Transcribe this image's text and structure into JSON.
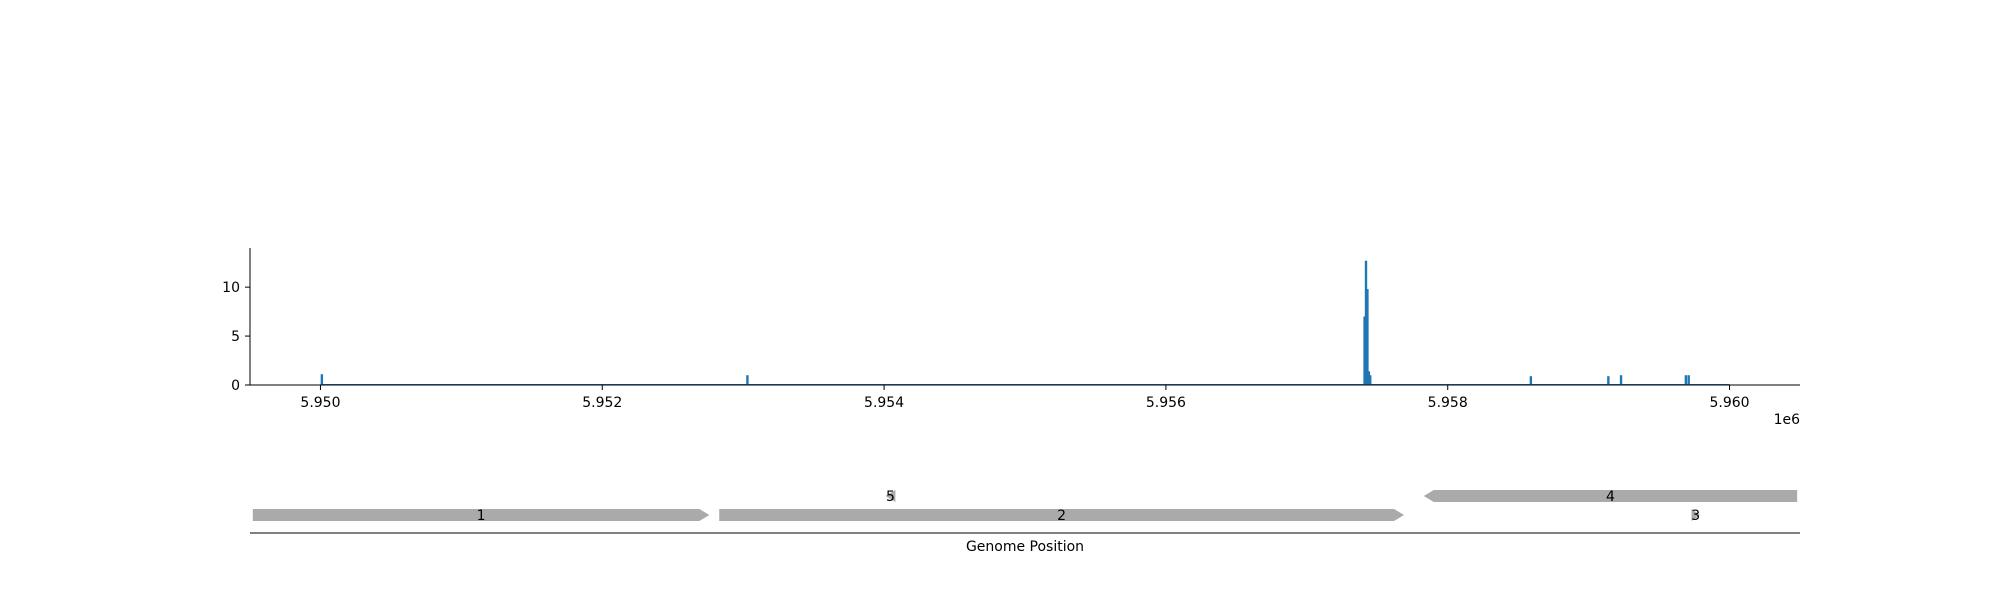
{
  "chart_data": [
    {
      "type": "bar",
      "title": "",
      "xlabel": "",
      "ylabel": "",
      "x_offset_label": "1e6",
      "xlim": [
        5949500,
        5960500
      ],
      "ylim": [
        0,
        14
      ],
      "xticks": [
        5950000,
        5952000,
        5954000,
        5956000,
        5958000,
        5960000
      ],
      "xtick_labels": [
        "5.950",
        "5.952",
        "5.954",
        "5.956",
        "5.958",
        "5.960"
      ],
      "yticks": [
        0,
        5,
        10
      ],
      "ytick_labels": [
        "0",
        "5",
        "10"
      ],
      "baseline": {
        "x_start": 5950000,
        "x_end": 5960000,
        "value": 0.1
      },
      "series": [
        {
          "color": "#1f77b4",
          "points": [
            {
              "x": 5950010,
              "y": 1.1
            },
            {
              "x": 5953030,
              "y": 1.0
            },
            {
              "x": 5957410,
              "y": 7.0
            },
            {
              "x": 5957420,
              "y": 12.7
            },
            {
              "x": 5957430,
              "y": 9.8
            },
            {
              "x": 5957440,
              "y": 1.4
            },
            {
              "x": 5957450,
              "y": 1.0
            },
            {
              "x": 5958590,
              "y": 0.9
            },
            {
              "x": 5959140,
              "y": 0.9
            },
            {
              "x": 5959230,
              "y": 1.0
            },
            {
              "x": 5959690,
              "y": 1.0
            },
            {
              "x": 5959710,
              "y": 1.0
            }
          ]
        }
      ]
    },
    {
      "type": "gene_track",
      "xlabel": "Genome Position",
      "xlim": [
        5949500,
        5960500
      ],
      "genes": [
        {
          "label": "1",
          "start": 5949520,
          "end": 5952760,
          "strand": "+",
          "row": 1
        },
        {
          "label": "2",
          "start": 5952830,
          "end": 5957690,
          "strand": "+",
          "row": 1
        },
        {
          "label": "5",
          "start": 5954010,
          "end": 5954080,
          "strand": "-",
          "row": 0
        },
        {
          "label": "4",
          "start": 5957830,
          "end": 5960480,
          "strand": "-",
          "row": 0
        },
        {
          "label": "3",
          "start": 5959730,
          "end": 5959790,
          "strand": "+",
          "row": 1
        }
      ],
      "color": "#aaaaaa"
    }
  ]
}
